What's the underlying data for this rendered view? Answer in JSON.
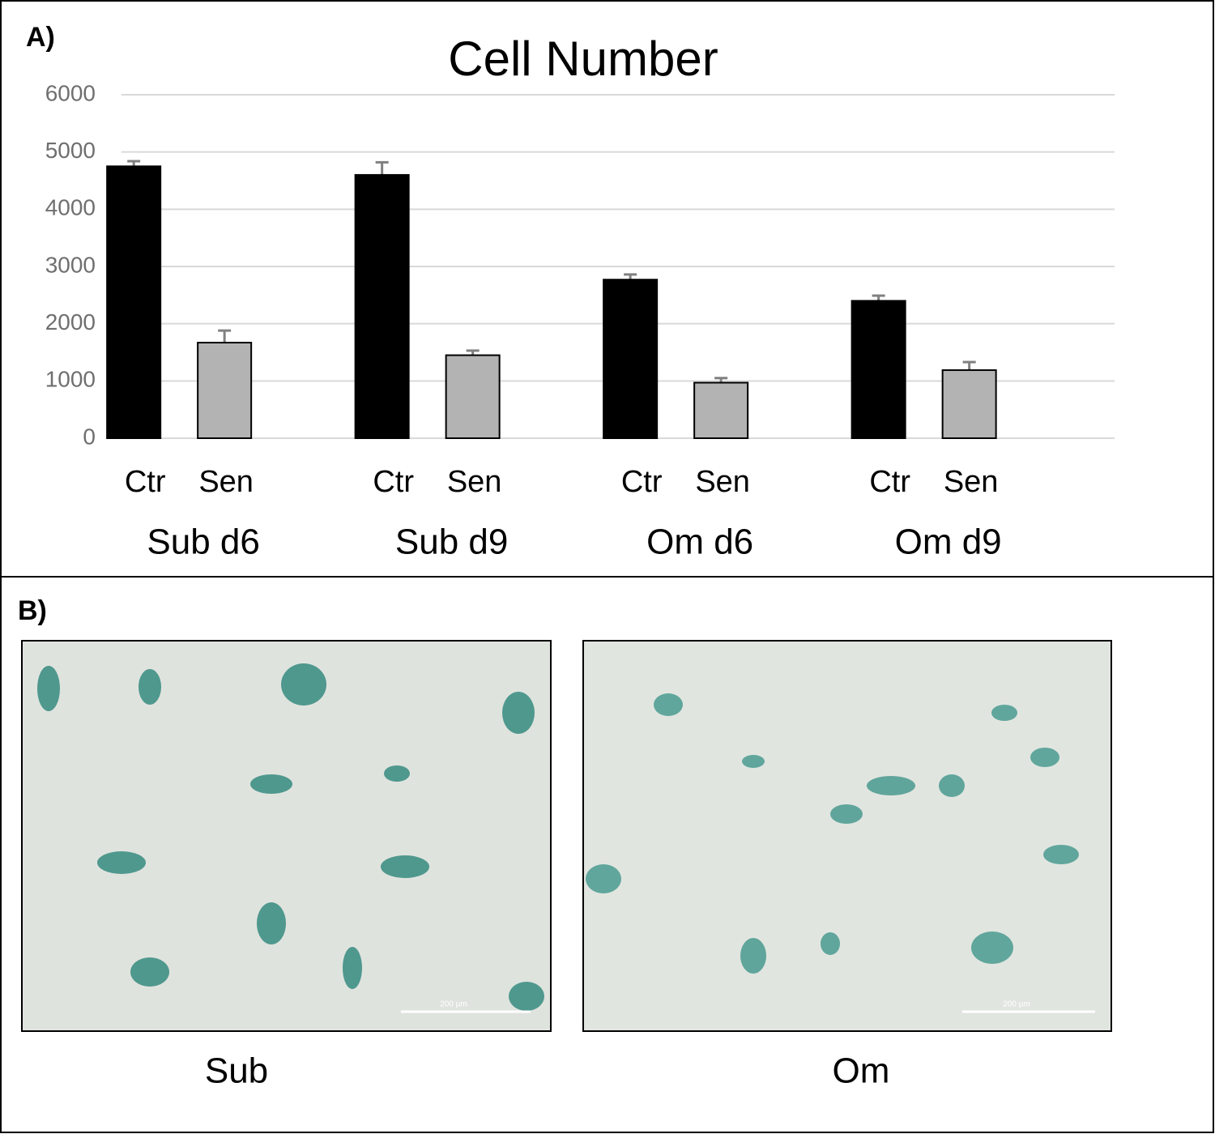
{
  "panels": {
    "a_label": "A)",
    "b_label": "B)"
  },
  "chart_data": {
    "type": "bar",
    "title": "Cell Number",
    "categories": [
      "Ctr",
      "Sen",
      "Ctr",
      "Sen",
      "Ctr",
      "Sen",
      "Ctr",
      "Sen"
    ],
    "groups": [
      "Sub d6",
      "Sub d9",
      "Om d6",
      "Om d9"
    ],
    "values": [
      4750,
      1670,
      4600,
      1450,
      2770,
      970,
      2400,
      1190
    ],
    "errors": [
      90,
      210,
      220,
      80,
      90,
      80,
      90,
      140
    ],
    "colors": [
      "#000000",
      "#b3b3b3",
      "#000000",
      "#b3b3b3",
      "#000000",
      "#b3b3b3",
      "#000000",
      "#b3b3b3"
    ],
    "error_color": "#808080",
    "ylim": [
      0,
      6000
    ],
    "yticks": [
      0,
      1000,
      2000,
      3000,
      4000,
      5000,
      6000
    ],
    "grid": true
  },
  "images": [
    {
      "caption": "Sub",
      "scale_bar": "200 µm"
    },
    {
      "caption": "Om",
      "scale_bar": "200 µm"
    }
  ]
}
